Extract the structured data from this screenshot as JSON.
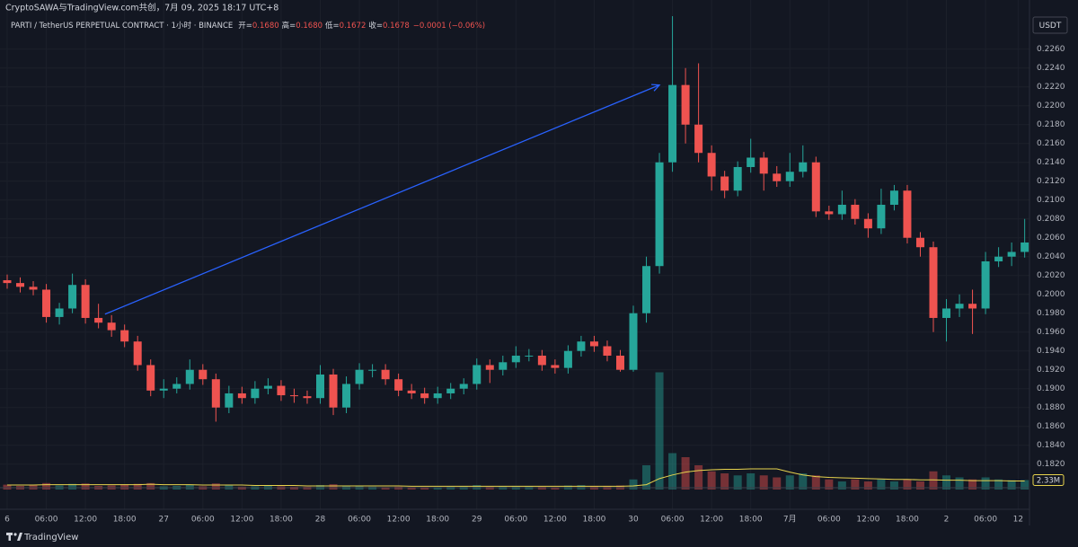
{
  "header": {
    "title": "CryptoSAWA与TradingView.com共创，7月 09, 2025 18:17 UTC+8",
    "legend": {
      "symbol": "PARTI / TetherUS PERPETUAL CONTRACT · 1小时 · BINANCE",
      "fields": [
        {
          "label": "开=",
          "value": "0.1680"
        },
        {
          "label": "高=",
          "value": "0.1680"
        },
        {
          "label": "低=",
          "value": "0.1672"
        },
        {
          "label": "收=",
          "value": "0.1678"
        }
      ],
      "change": "−0.0001 (−0.06%)"
    },
    "currency": "USDT",
    "footer": "TradingView"
  },
  "chart_data": {
    "type": "candlestick",
    "up_color": "#26a69a",
    "down_color": "#ef5350",
    "grid": true,
    "x": [
      0,
      2,
      4,
      6,
      8,
      10,
      12,
      14,
      16,
      18,
      20,
      22,
      24,
      26,
      28,
      30,
      32,
      34,
      36,
      38,
      40,
      42,
      44,
      46,
      48,
      50,
      52,
      54,
      56,
      58,
      60,
      62,
      64,
      66,
      68,
      70,
      72,
      74,
      76,
      78,
      80,
      82,
      84,
      86,
      88,
      90,
      92,
      94,
      96,
      98,
      100,
      102,
      104,
      106,
      108,
      110,
      112,
      114,
      116,
      118,
      120,
      122,
      124,
      126,
      128,
      130,
      132,
      134,
      136,
      138,
      140,
      142,
      144,
      146,
      148,
      150,
      152,
      154,
      156
    ],
    "open": [
      0.2015,
      0.2012,
      0.2008,
      0.2005,
      0.1976,
      0.1985,
      0.201,
      0.1975,
      0.197,
      0.1962,
      0.195,
      0.1925,
      0.1898,
      0.19,
      0.1905,
      0.192,
      0.191,
      0.188,
      0.1895,
      0.189,
      0.19,
      0.1903,
      0.1893,
      0.1892,
      0.189,
      0.1915,
      0.188,
      0.1905,
      0.192,
      0.192,
      0.191,
      0.1898,
      0.1895,
      0.189,
      0.1895,
      0.19,
      0.1905,
      0.1925,
      0.192,
      0.1928,
      0.1935,
      0.1935,
      0.1925,
      0.1922,
      0.194,
      0.195,
      0.1945,
      0.1935,
      0.192,
      0.198,
      0.203,
      0.214,
      0.2222,
      0.218,
      0.215,
      0.2125,
      0.211,
      0.2135,
      0.2145,
      0.2128,
      0.212,
      0.213,
      0.214,
      0.2088,
      0.2085,
      0.2095,
      0.208,
      0.207,
      0.2095,
      0.211,
      0.206,
      0.205,
      0.1975,
      0.1985,
      0.199,
      0.1985,
      0.2035,
      0.204,
      0.2045
    ],
    "high": [
      0.2021,
      0.2018,
      0.2014,
      0.2011,
      0.1991,
      0.2022,
      0.2016,
      0.199,
      0.1978,
      0.1968,
      0.1956,
      0.1931,
      0.191,
      0.1912,
      0.1931,
      0.1926,
      0.1916,
      0.1903,
      0.1902,
      0.1908,
      0.1911,
      0.1909,
      0.19,
      0.1898,
      0.1925,
      0.1921,
      0.1913,
      0.1927,
      0.1926,
      0.1926,
      0.1916,
      0.1905,
      0.1901,
      0.1902,
      0.1906,
      0.1911,
      0.1932,
      0.1931,
      0.1935,
      0.1945,
      0.1942,
      0.1941,
      0.1931,
      0.1946,
      0.1956,
      0.1956,
      0.1951,
      0.1941,
      0.1988,
      0.204,
      0.215,
      0.2295,
      0.224,
      0.2245,
      0.2158,
      0.2131,
      0.2141,
      0.2165,
      0.2151,
      0.2136,
      0.215,
      0.2158,
      0.2146,
      0.2094,
      0.211,
      0.2101,
      0.2086,
      0.2112,
      0.2116,
      0.2116,
      0.2066,
      0.2056,
      0.1995,
      0.2,
      0.2005,
      0.2045,
      0.205,
      0.2055,
      0.208
    ],
    "low": [
      0.2006,
      0.2002,
      0.1999,
      0.197,
      0.1968,
      0.198,
      0.1969,
      0.1964,
      0.1955,
      0.1944,
      0.1919,
      0.1892,
      0.189,
      0.1895,
      0.1899,
      0.1904,
      0.1865,
      0.1874,
      0.1884,
      0.1884,
      0.1894,
      0.1887,
      0.1885,
      0.1884,
      0.1884,
      0.1872,
      0.1874,
      0.1899,
      0.1912,
      0.1904,
      0.1892,
      0.1889,
      0.1884,
      0.1884,
      0.1889,
      0.1894,
      0.1899,
      0.1906,
      0.1914,
      0.1922,
      0.1929,
      0.1919,
      0.1916,
      0.1916,
      0.1934,
      0.1939,
      0.1929,
      0.1918,
      0.1918,
      0.197,
      0.2022,
      0.213,
      0.216,
      0.214,
      0.211,
      0.2102,
      0.2104,
      0.2129,
      0.211,
      0.2114,
      0.2114,
      0.2124,
      0.2082,
      0.2079,
      0.2079,
      0.2074,
      0.206,
      0.2064,
      0.2089,
      0.2054,
      0.204,
      0.196,
      0.195,
      0.1976,
      0.1958,
      0.1979,
      0.2029,
      0.203,
      0.2039
    ],
    "close": [
      0.2012,
      0.2008,
      0.2005,
      0.1976,
      0.1985,
      0.201,
      0.1975,
      0.197,
      0.1962,
      0.195,
      0.1925,
      0.1898,
      0.19,
      0.1905,
      0.192,
      0.191,
      0.188,
      0.1895,
      0.189,
      0.19,
      0.1903,
      0.1893,
      0.1892,
      0.189,
      0.1915,
      0.188,
      0.1905,
      0.192,
      0.192,
      0.191,
      0.1898,
      0.1895,
      0.189,
      0.1895,
      0.19,
      0.1905,
      0.1925,
      0.192,
      0.1928,
      0.1935,
      0.1935,
      0.1925,
      0.1922,
      0.194,
      0.195,
      0.1945,
      0.1935,
      0.192,
      0.198,
      0.203,
      0.214,
      0.2222,
      0.218,
      0.215,
      0.2125,
      0.211,
      0.2135,
      0.2145,
      0.2128,
      0.212,
      0.213,
      0.214,
      0.2088,
      0.2085,
      0.2095,
      0.208,
      0.207,
      0.2095,
      0.211,
      0.206,
      0.205,
      0.1975,
      0.1985,
      0.199,
      0.1985,
      0.2035,
      0.204,
      0.2045,
      0.2055
    ],
    "volume": [
      1.2,
      0.9,
      1.1,
      1.6,
      1.0,
      1.4,
      1.5,
      0.9,
      1.0,
      1.3,
      1.4,
      1.6,
      0.8,
      0.9,
      1.2,
      0.8,
      1.5,
      1.0,
      0.7,
      0.8,
      0.9,
      0.8,
      0.7,
      0.7,
      1.1,
      1.3,
      1.0,
      0.9,
      0.7,
      0.6,
      0.7,
      0.6,
      0.6,
      0.6,
      0.7,
      0.8,
      1.1,
      0.7,
      0.8,
      0.9,
      0.8,
      0.7,
      0.6,
      1.0,
      1.1,
      0.8,
      0.9,
      1.0,
      2.5,
      6.0,
      29.0,
      9.0,
      8.0,
      6.0,
      4.5,
      4.0,
      3.5,
      4.0,
      3.5,
      3.0,
      3.5,
      4.0,
      3.5,
      2.5,
      2.0,
      2.5,
      2.0,
      2.5,
      2.0,
      2.5,
      2.0,
      4.5,
      3.5,
      3.0,
      2.5,
      3.0,
      2.5,
      2.3,
      2.33
    ],
    "volume_last_label": "2.33M",
    "volume_ma": [
      1.1,
      1.1,
      1.1,
      1.2,
      1.2,
      1.2,
      1.2,
      1.2,
      1.2,
      1.2,
      1.2,
      1.3,
      1.2,
      1.2,
      1.2,
      1.1,
      1.1,
      1.1,
      1.1,
      1.0,
      1.0,
      1.0,
      1.0,
      0.9,
      0.9,
      0.9,
      0.9,
      0.9,
      0.9,
      0.9,
      0.9,
      0.8,
      0.8,
      0.8,
      0.8,
      0.8,
      0.8,
      0.8,
      0.8,
      0.8,
      0.8,
      0.8,
      0.8,
      0.8,
      0.8,
      0.8,
      0.8,
      0.8,
      0.9,
      1.2,
      2.7,
      3.6,
      4.3,
      4.7,
      4.9,
      5.0,
      5.0,
      5.1,
      5.1,
      5.1,
      4.3,
      3.6,
      3.2,
      3.0,
      2.9,
      2.8,
      2.7,
      2.6,
      2.5,
      2.5,
      2.4,
      2.4,
      2.3,
      2.3,
      2.2,
      2.2,
      2.2,
      2.1,
      2.1
    ],
    "volume_ma_color": "#e8d44d",
    "volume_ylim": [
      0,
      30
    ],
    "trendline": {
      "x": [
        15,
        100
      ],
      "y": [
        0.1979,
        0.2222
      ],
      "color": "#2962ff"
    },
    "xlim": [
      -1.1,
      156.6
    ],
    "xticks": [
      {
        "value": 0,
        "label": "6"
      },
      {
        "value": 6,
        "label": "06:00"
      },
      {
        "value": 12,
        "label": "12:00"
      },
      {
        "value": 18,
        "label": "18:00"
      },
      {
        "value": 24,
        "label": "27"
      },
      {
        "value": 30,
        "label": "06:00"
      },
      {
        "value": 36,
        "label": "12:00"
      },
      {
        "value": 42,
        "label": "18:00"
      },
      {
        "value": 48,
        "label": "28"
      },
      {
        "value": 54,
        "label": "06:00"
      },
      {
        "value": 60,
        "label": "12:00"
      },
      {
        "value": 66,
        "label": "18:00"
      },
      {
        "value": 72,
        "label": "29"
      },
      {
        "value": 78,
        "label": "06:00"
      },
      {
        "value": 84,
        "label": "12:00"
      },
      {
        "value": 90,
        "label": "18:00"
      },
      {
        "value": 96,
        "label": "30"
      },
      {
        "value": 102,
        "label": "06:00"
      },
      {
        "value": 108,
        "label": "12:00"
      },
      {
        "value": 114,
        "label": "18:00"
      },
      {
        "value": 120,
        "label": "7月"
      },
      {
        "value": 126,
        "label": "06:00"
      },
      {
        "value": 132,
        "label": "12:00"
      },
      {
        "value": 138,
        "label": "18:00"
      },
      {
        "value": 144,
        "label": "2"
      },
      {
        "value": 150,
        "label": "06:00"
      },
      {
        "value": 155,
        "label": "12"
      }
    ],
    "ylim": [
      0.1774,
      0.2295
    ],
    "yticks": [
      {
        "value": 0.182,
        "label": "0.1820"
      },
      {
        "value": 0.184,
        "label": "0.1840"
      },
      {
        "value": 0.186,
        "label": "0.1860"
      },
      {
        "value": 0.188,
        "label": "0.1880"
      },
      {
        "value": 0.19,
        "label": "0.1900"
      },
      {
        "value": 0.192,
        "label": "0.1920"
      },
      {
        "value": 0.194,
        "label": "0.1940"
      },
      {
        "value": 0.196,
        "label": "0.1960"
      },
      {
        "value": 0.198,
        "label": "0.1980"
      },
      {
        "value": 0.2,
        "label": "0.2000"
      },
      {
        "value": 0.202,
        "label": "0.2020"
      },
      {
        "value": 0.204,
        "label": "0.2040"
      },
      {
        "value": 0.206,
        "label": "0.2060"
      },
      {
        "value": 0.208,
        "label": "0.2080"
      },
      {
        "value": 0.21,
        "label": "0.2100"
      },
      {
        "value": 0.212,
        "label": "0.2120"
      },
      {
        "value": 0.214,
        "label": "0.2140"
      },
      {
        "value": 0.216,
        "label": "0.2160"
      },
      {
        "value": 0.218,
        "label": "0.2180"
      },
      {
        "value": 0.22,
        "label": "0.2200"
      },
      {
        "value": 0.222,
        "label": "0.2220"
      },
      {
        "value": 0.224,
        "label": "0.2240"
      },
      {
        "value": 0.226,
        "label": "0.2260"
      }
    ]
  }
}
